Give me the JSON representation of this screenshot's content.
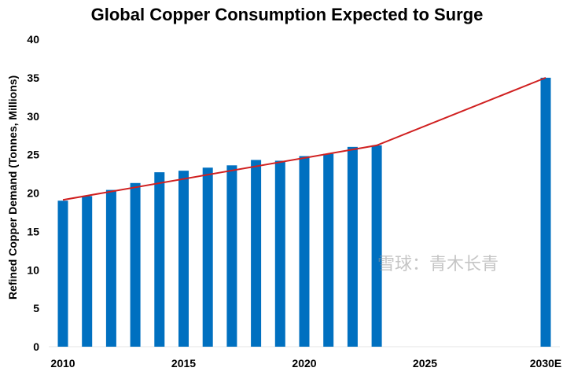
{
  "chart_data": {
    "type": "bar",
    "title": "Global Copper Consumption Expected to Surge",
    "xlabel": "",
    "ylabel": "Refined Copper Demand (Tonnes, Millions)",
    "ylim": [
      0,
      40
    ],
    "yticks": [
      0,
      5,
      10,
      15,
      20,
      25,
      30,
      35,
      40
    ],
    "xticks": [
      "2010",
      "2015",
      "2020",
      "2025",
      "2030E"
    ],
    "grid": false,
    "bar_color": "#0070C0",
    "trend_color": "#D02020",
    "bars": [
      {
        "year": 2010,
        "value": 19.0
      },
      {
        "year": 2011,
        "value": 19.6
      },
      {
        "year": 2012,
        "value": 20.4
      },
      {
        "year": 2013,
        "value": 21.3
      },
      {
        "year": 2014,
        "value": 22.7
      },
      {
        "year": 2015,
        "value": 22.9
      },
      {
        "year": 2016,
        "value": 23.3
      },
      {
        "year": 2017,
        "value": 23.6
      },
      {
        "year": 2018,
        "value": 24.3
      },
      {
        "year": 2019,
        "value": 24.2
      },
      {
        "year": 2020,
        "value": 24.8
      },
      {
        "year": 2021,
        "value": 25.1
      },
      {
        "year": 2022,
        "value": 26.0
      },
      {
        "year": 2023,
        "value": 26.2
      },
      {
        "year": 2030,
        "label": "2030E",
        "value": 35.0
      }
    ],
    "trend_line": [
      {
        "year": 2010,
        "value": 19.1
      },
      {
        "year": 2023,
        "value": 26.2
      },
      {
        "year": 2030,
        "value": 35.0
      }
    ]
  },
  "watermark": "雪球：青木长青"
}
